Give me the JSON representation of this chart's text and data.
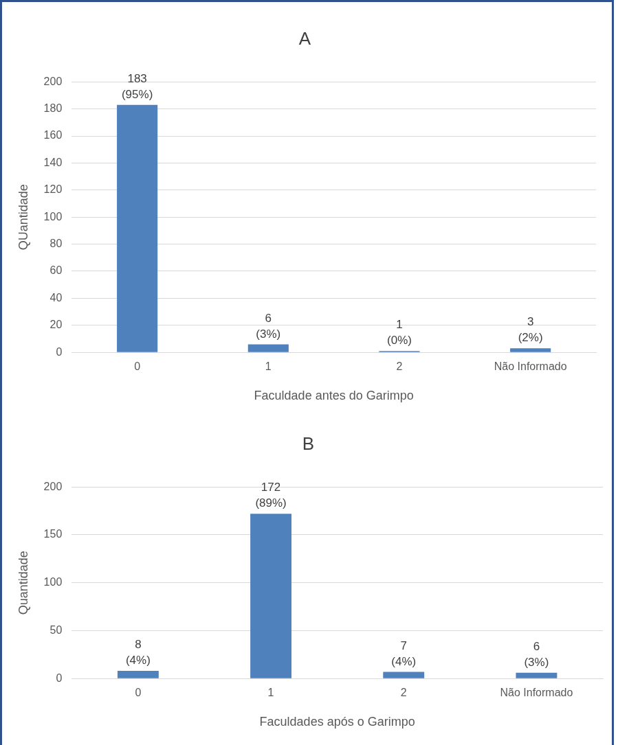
{
  "chart_data": [
    {
      "type": "bar",
      "title": "A",
      "xlabel": "Faculdade antes do Garimpo",
      "ylabel": "QUantidade",
      "categories": [
        "0",
        "1",
        "2",
        "Não Informado"
      ],
      "values": [
        183,
        6,
        1,
        3
      ],
      "color": "#4f81bd",
      "value_labels": [
        "183\n(95%)",
        "6\n(3%)",
        "1\n(0%)",
        "3\n(2%)"
      ],
      "ylim": [
        0,
        200
      ],
      "yticks": [
        0,
        20,
        40,
        60,
        80,
        100,
        120,
        140,
        160,
        180,
        200
      ],
      "grid": "y"
    },
    {
      "type": "bar",
      "title": "B",
      "xlabel": "Faculdades após o Garimpo",
      "ylabel": "Quantidade",
      "categories": [
        "0",
        "1",
        "2",
        "Não Informado"
      ],
      "values": [
        8,
        172,
        7,
        6
      ],
      "color": "#4f81bd",
      "value_labels": [
        "8\n(4%)",
        "172\n(89%)",
        "7\n(4%)",
        "6\n(3%)"
      ],
      "ylim": [
        0,
        200
      ],
      "yticks": [
        0,
        50,
        100,
        150,
        200
      ],
      "grid": "y"
    }
  ]
}
